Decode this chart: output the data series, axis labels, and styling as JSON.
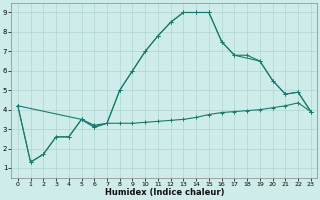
{
  "xlabel": "Humidex (Indice chaleur)",
  "background_color": "#ceecea",
  "grid_color": "#aed4d0",
  "line_color": "#1a7a6e",
  "xlim": [
    -0.5,
    23.5
  ],
  "ylim": [
    0.5,
    9.5
  ],
  "xticks": [
    0,
    1,
    2,
    3,
    4,
    5,
    6,
    7,
    8,
    9,
    10,
    11,
    12,
    13,
    14,
    15,
    16,
    17,
    18,
    19,
    20,
    21,
    22,
    23
  ],
  "yticks": [
    1,
    2,
    3,
    4,
    5,
    6,
    7,
    8,
    9
  ],
  "line1_x": [
    0,
    1,
    2,
    3,
    4,
    5,
    6,
    7,
    8,
    9,
    10,
    11,
    12,
    13,
    14,
    15,
    16,
    17,
    18,
    19,
    20,
    21,
    22,
    23
  ],
  "line1_y": [
    4.2,
    1.3,
    1.7,
    2.6,
    2.6,
    3.5,
    3.2,
    3.3,
    3.3,
    3.3,
    3.35,
    3.4,
    3.45,
    3.5,
    3.6,
    3.75,
    3.85,
    3.9,
    3.95,
    4.0,
    4.1,
    4.2,
    4.35,
    3.9
  ],
  "line2_x": [
    0,
    1,
    2,
    3,
    4,
    5,
    6,
    7,
    8,
    9,
    10,
    11,
    12,
    13,
    14,
    15,
    16,
    17,
    18,
    19,
    20,
    21,
    22,
    23
  ],
  "line2_y": [
    4.2,
    1.3,
    1.7,
    2.6,
    2.6,
    3.5,
    3.1,
    3.3,
    5.0,
    6.0,
    7.0,
    7.8,
    8.5,
    9.0,
    9.0,
    9.0,
    7.5,
    6.8,
    6.8,
    6.5,
    5.5,
    4.8,
    4.9,
    3.9
  ],
  "line3_x": [
    0,
    5,
    6,
    7,
    8,
    9,
    10,
    11,
    12,
    13,
    14,
    15,
    16,
    17,
    19,
    20,
    21,
    22,
    23
  ],
  "line3_y": [
    4.2,
    3.5,
    3.1,
    3.3,
    5.0,
    6.0,
    7.0,
    7.8,
    8.5,
    9.0,
    9.0,
    9.0,
    7.5,
    6.8,
    6.5,
    5.5,
    4.8,
    4.9,
    3.9
  ]
}
